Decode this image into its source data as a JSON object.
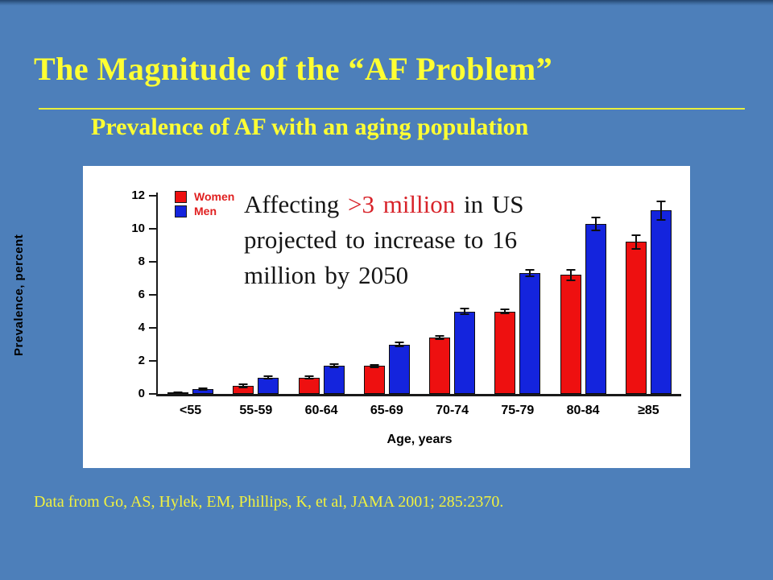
{
  "slide": {
    "title": "The Magnitude of the “AF Problem”",
    "subtitle": "Prevalence of AF with an aging population",
    "citation": "Data from Go, AS, Hylek, EM, Phillips, K, et al, JAMA 2001; 285:2370.",
    "background_color": "#4d7fba",
    "title_color": "#ffff33",
    "rule_color": "#e9ef3c"
  },
  "annotation": {
    "text_color": "#151515",
    "highlight_color": "#d8232a",
    "lines": [
      {
        "pre": "Affecting ",
        "highlight": ">3 million",
        "post": " in US"
      },
      {
        "pre": "projected to increase to 16",
        "highlight": "",
        "post": ""
      },
      {
        "pre": "million by 2050",
        "highlight": "",
        "post": ""
      }
    ]
  },
  "chart_data": {
    "type": "bar",
    "title": "",
    "xlabel": "Age, years",
    "ylabel": "Prevalence, percent",
    "categories": [
      "<55",
      "55-59",
      "60-64",
      "65-69",
      "70-74",
      "75-79",
      "80-84",
      "≥85"
    ],
    "series": [
      {
        "name": "Women",
        "color": "#ee1010",
        "values": [
          0.1,
          0.5,
          1.0,
          1.7,
          3.4,
          5.0,
          7.2,
          9.2
        ],
        "errors": [
          0.05,
          0.15,
          0.12,
          0.12,
          0.15,
          0.15,
          0.35,
          0.45
        ]
      },
      {
        "name": "Men",
        "color": "#1424dd",
        "values": [
          0.3,
          1.0,
          1.7,
          3.0,
          5.0,
          7.3,
          10.3,
          11.1
        ],
        "errors": [
          0.08,
          0.12,
          0.15,
          0.18,
          0.2,
          0.25,
          0.45,
          0.6
        ]
      }
    ],
    "ylim": [
      0,
      12
    ],
    "ytick_step": 2,
    "grid": false,
    "legend_position": "top-left",
    "legend_label_color": "#e02020",
    "error_bars": true
  }
}
